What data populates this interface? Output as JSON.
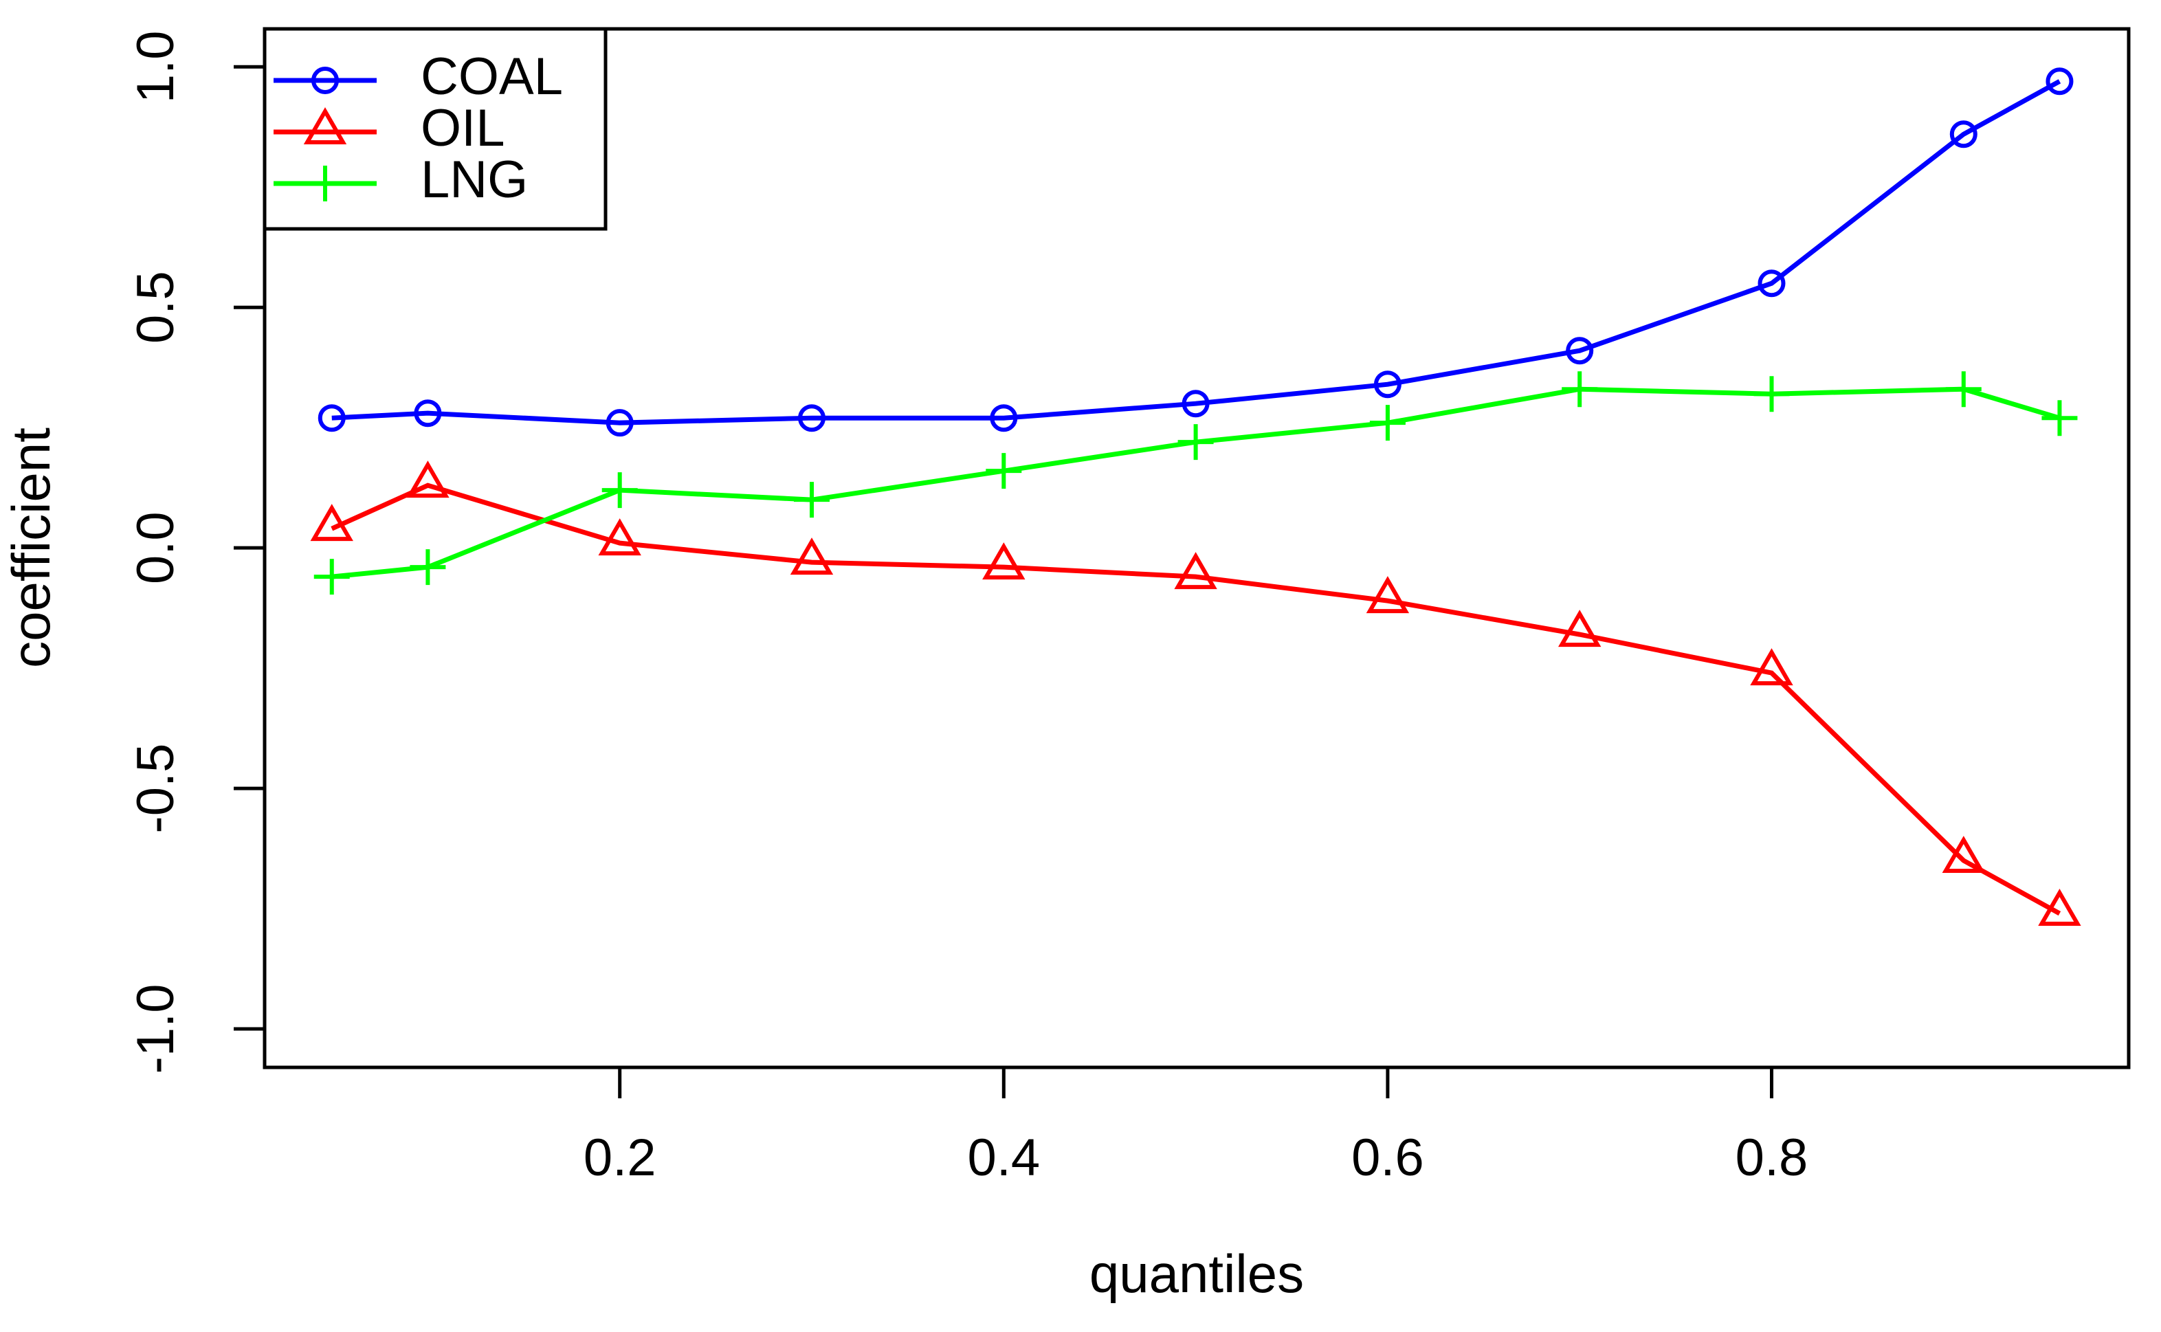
{
  "chart_data": {
    "type": "line",
    "title": "",
    "xlabel": "quantiles",
    "ylabel": "coefficient",
    "x": [
      0.05,
      0.1,
      0.2,
      0.3,
      0.4,
      0.5,
      0.6,
      0.7,
      0.8,
      0.9,
      0.95
    ],
    "series": [
      {
        "name": "COAL",
        "color": "#0000ff",
        "marker": "circle",
        "values": [
          0.27,
          0.28,
          0.26,
          0.27,
          0.27,
          0.3,
          0.34,
          0.41,
          0.55,
          0.86,
          0.97
        ]
      },
      {
        "name": "OIL",
        "color": "#ff0000",
        "marker": "triangle",
        "values": [
          0.04,
          0.13,
          0.01,
          -0.03,
          -0.04,
          -0.06,
          -0.11,
          -0.18,
          -0.26,
          -0.65,
          -0.76
        ]
      },
      {
        "name": "LNG",
        "color": "#00ff00",
        "marker": "plus",
        "values": [
          -0.06,
          -0.04,
          0.12,
          0.1,
          0.16,
          0.22,
          0.26,
          0.33,
          0.32,
          0.33,
          0.27
        ]
      }
    ],
    "x_ticks": {
      "positions": [
        0.2,
        0.4,
        0.6,
        0.8
      ],
      "labels": [
        "0.2",
        "0.4",
        "0.6",
        "0.8"
      ]
    },
    "y_ticks": {
      "positions": [
        1.0,
        0.5,
        0.0,
        -0.5,
        -1.0
      ],
      "labels": [
        "1.0",
        "0.5",
        "0.0",
        "-0.5",
        "-1.0"
      ]
    },
    "xlim": [
      0.015,
      0.986
    ],
    "ylim": [
      -1.08,
      1.079
    ],
    "grid": false,
    "legend_position": "top-left",
    "axis_color": "#000000",
    "background": "#ffffff"
  }
}
